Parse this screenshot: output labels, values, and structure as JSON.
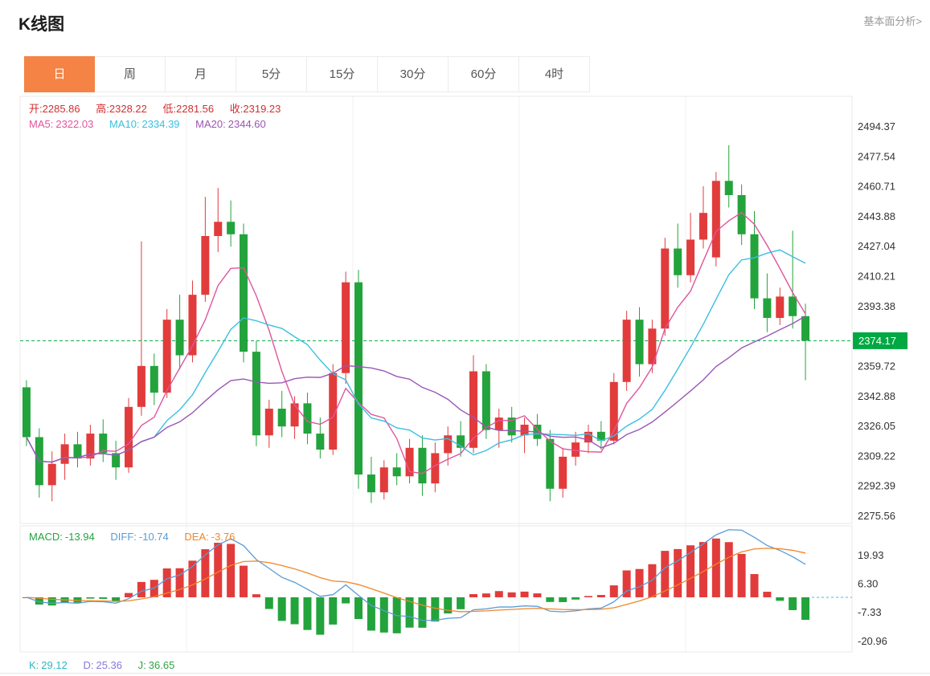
{
  "header": {
    "title": "K线图",
    "link": "基本面分析>"
  },
  "tabs": [
    "日",
    "周",
    "月",
    "5分",
    "15分",
    "30分",
    "60分",
    "4时"
  ],
  "legend": {
    "ohlc": [
      {
        "label": "开:",
        "value": "2285.86"
      },
      {
        "label": "高:",
        "value": "2328.22"
      },
      {
        "label": "低:",
        "value": "2281.56"
      },
      {
        "label": "收:",
        "value": "2319.23"
      }
    ],
    "ma": [
      {
        "label": "MA5:",
        "value": "2322.03"
      },
      {
        "label": "MA10:",
        "value": "2334.39"
      },
      {
        "label": "MA20:",
        "value": "2344.60"
      }
    ],
    "macd": [
      {
        "label": "MACD:",
        "value": "-13.94"
      },
      {
        "label": "DIFF:",
        "value": "-10.74"
      },
      {
        "label": "DEA:",
        "value": "-3.76"
      }
    ],
    "kdj": [
      {
        "label": "K:",
        "value": "29.12"
      },
      {
        "label": "D:",
        "value": "25.36"
      },
      {
        "label": "J:",
        "value": "36.65"
      }
    ]
  },
  "colors": {
    "up_red": "#e23b3b",
    "down_green": "#23a33c",
    "ohlc_text_red": "#d03030",
    "ma5_pink": "#e0559e",
    "ma10_cyan": "#3bbfe0",
    "ma20_purple": "#9a57b5",
    "diff_blue": "#5b9bd5",
    "dea_orange": "#f0862b",
    "kdj_k_teal": "#2bb8c4",
    "kdj_d_purple": "#8779d8",
    "kdj_j_green": "#31a345",
    "price_badge_green": "#00a843",
    "tab_active_orange": "#f58345",
    "axis_text": "#333333",
    "grid": "#f0f0f0",
    "border": "#e8e8e8"
  },
  "chart_data": {
    "type": "candlestick",
    "title": "K线图",
    "interval_selected": "日",
    "candles": [
      [
        2348,
        2352,
        2315,
        2320
      ],
      [
        2320,
        2325,
        2286,
        2293
      ],
      [
        2293,
        2312,
        2284,
        2305
      ],
      [
        2305,
        2322,
        2296,
        2316
      ],
      [
        2316,
        2323,
        2303,
        2308
      ],
      [
        2308,
        2327,
        2304,
        2322
      ],
      [
        2322,
        2330,
        2306,
        2311
      ],
      [
        2311,
        2318,
        2296,
        2303
      ],
      [
        2303,
        2342,
        2300,
        2337
      ],
      [
        2337,
        2430,
        2332,
        2360
      ],
      [
        2360,
        2367,
        2338,
        2345
      ],
      [
        2345,
        2392,
        2342,
        2386
      ],
      [
        2386,
        2400,
        2358,
        2366
      ],
      [
        2366,
        2408,
        2362,
        2400
      ],
      [
        2400,
        2455,
        2396,
        2433
      ],
      [
        2433,
        2460,
        2424,
        2441
      ],
      [
        2441,
        2453,
        2427,
        2434
      ],
      [
        2434,
        2440,
        2362,
        2368
      ],
      [
        2368,
        2374,
        2315,
        2321
      ],
      [
        2321,
        2341,
        2314,
        2336
      ],
      [
        2336,
        2346,
        2320,
        2326
      ],
      [
        2326,
        2343,
        2319,
        2339
      ],
      [
        2339,
        2345,
        2316,
        2322
      ],
      [
        2322,
        2331,
        2308,
        2313
      ],
      [
        2313,
        2361,
        2310,
        2356
      ],
      [
        2356,
        2413,
        2350,
        2407
      ],
      [
        2407,
        2414,
        2291,
        2299
      ],
      [
        2299,
        2309,
        2283,
        2289
      ],
      [
        2289,
        2307,
        2285,
        2303
      ],
      [
        2303,
        2311,
        2293,
        2298
      ],
      [
        2298,
        2319,
        2294,
        2314
      ],
      [
        2314,
        2321,
        2287,
        2294
      ],
      [
        2294,
        2317,
        2289,
        2311
      ],
      [
        2311,
        2326,
        2304,
        2321
      ],
      [
        2321,
        2329,
        2309,
        2314
      ],
      [
        2314,
        2366,
        2311,
        2357
      ],
      [
        2357,
        2361,
        2319,
        2324
      ],
      [
        2324,
        2336,
        2314,
        2331
      ],
      [
        2331,
        2337,
        2317,
        2321
      ],
      [
        2321,
        2331,
        2311,
        2327
      ],
      [
        2327,
        2333,
        2315,
        2319
      ],
      [
        2319,
        2324,
        2284,
        2291
      ],
      [
        2291,
        2314,
        2286,
        2309
      ],
      [
        2309,
        2323,
        2304,
        2317
      ],
      [
        2317,
        2327,
        2311,
        2323
      ],
      [
        2323,
        2329,
        2313,
        2318
      ],
      [
        2318,
        2356,
        2316,
        2351
      ],
      [
        2351,
        2391,
        2346,
        2386
      ],
      [
        2386,
        2393,
        2354,
        2361
      ],
      [
        2361,
        2386,
        2356,
        2381
      ],
      [
        2381,
        2432,
        2377,
        2426
      ],
      [
        2426,
        2440,
        2404,
        2411
      ],
      [
        2411,
        2446,
        2407,
        2431
      ],
      [
        2431,
        2461,
        2426,
        2446
      ],
      [
        2421,
        2469,
        2416,
        2464
      ],
      [
        2464,
        2484,
        2449,
        2456
      ],
      [
        2456,
        2462,
        2428,
        2434
      ],
      [
        2434,
        2447,
        2392,
        2398
      ],
      [
        2398,
        2412,
        2379,
        2387
      ],
      [
        2387,
        2404,
        2383,
        2399
      ],
      [
        2399,
        2436,
        2381,
        2388
      ],
      [
        2388,
        2395,
        2352,
        2374.17
      ]
    ],
    "price_axis": {
      "labels": [
        "2494.37",
        "2477.54",
        "2460.71",
        "2443.88",
        "2427.04",
        "2410.21",
        "2393.38",
        "2359.72",
        "2342.88",
        "2326.05",
        "2309.22",
        "2292.39",
        "2275.56"
      ],
      "current": "2374.17",
      "ylim": [
        2271.5,
        2511.5
      ]
    },
    "overlays": [
      {
        "name": "MA5",
        "period": 5,
        "color": "#e0559e"
      },
      {
        "name": "MA10",
        "period": 10,
        "color": "#3bbfe0"
      },
      {
        "name": "MA20",
        "period": 20,
        "color": "#9a57b5"
      }
    ],
    "macd": {
      "labels": [
        "19.93",
        "6.30",
        "-7.33",
        "-20.96"
      ],
      "params": [
        12,
        26,
        9
      ],
      "ylim": [
        -26,
        34
      ]
    }
  }
}
